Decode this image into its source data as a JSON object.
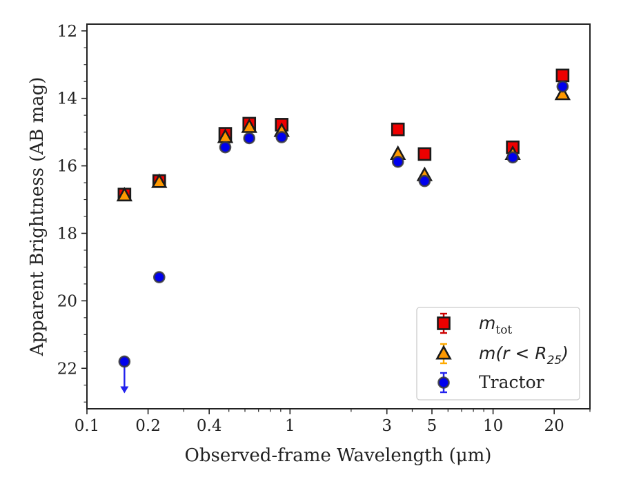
{
  "chart_data": {
    "type": "scatter",
    "xlabel": "Observed-frame Wavelength (μm)",
    "ylabel": "Apparent Brightness (AB mag)",
    "xscale": "log",
    "xlim": [
      0.1,
      30
    ],
    "ylim": [
      23.2,
      11.8
    ],
    "y_inverted": true,
    "x_ticks": [
      {
        "value": 0.1,
        "label": "0.1"
      },
      {
        "value": 0.2,
        "label": "0.2"
      },
      {
        "value": 0.4,
        "label": "0.4"
      },
      {
        "value": 1,
        "label": "1"
      },
      {
        "value": 3,
        "label": "3"
      },
      {
        "value": 5,
        "label": "5"
      },
      {
        "value": 10,
        "label": "10"
      },
      {
        "value": 20,
        "label": "20"
      }
    ],
    "y_ticks": [
      12,
      14,
      16,
      18,
      20,
      22
    ],
    "grid": false,
    "legend_position": "bottom-right",
    "series": [
      {
        "name": "m_tot",
        "marker": "square",
        "color": "#ee0000",
        "error_color": "#cc0000",
        "points": [
          {
            "x": 0.153,
            "y": 16.85
          },
          {
            "x": 0.227,
            "y": 16.45
          },
          {
            "x": 0.48,
            "y": 15.05
          },
          {
            "x": 0.63,
            "y": 14.75
          },
          {
            "x": 0.91,
            "y": 14.78
          },
          {
            "x": 3.4,
            "y": 14.92
          },
          {
            "x": 4.6,
            "y": 15.65
          },
          {
            "x": 12.5,
            "y": 15.45
          },
          {
            "x": 22.0,
            "y": 13.32
          }
        ]
      },
      {
        "name": "m(r < R_25)",
        "marker": "triangle",
        "color": "#ff9900",
        "error_color": "#ffaa00",
        "points": [
          {
            "x": 0.153,
            "y": 16.88
          },
          {
            "x": 0.227,
            "y": 16.48
          },
          {
            "x": 0.48,
            "y": 15.15
          },
          {
            "x": 0.63,
            "y": 14.85
          },
          {
            "x": 0.91,
            "y": 14.97
          },
          {
            "x": 3.4,
            "y": 15.65
          },
          {
            "x": 4.6,
            "y": 16.28
          },
          {
            "x": 12.5,
            "y": 15.65
          },
          {
            "x": 22.0,
            "y": 13.88
          }
        ]
      },
      {
        "name": "Tractor",
        "marker": "circle",
        "color": "#0000ee",
        "error_color": "#2222ee",
        "points": [
          {
            "x": 0.153,
            "y": 21.8,
            "upper_limit": true
          },
          {
            "x": 0.227,
            "y": 19.3
          },
          {
            "x": 0.48,
            "y": 15.45
          },
          {
            "x": 0.63,
            "y": 15.18
          },
          {
            "x": 0.91,
            "y": 15.15
          },
          {
            "x": 3.4,
            "y": 15.88
          },
          {
            "x": 4.6,
            "y": 16.45
          },
          {
            "x": 12.5,
            "y": 15.75
          },
          {
            "x": 22.0,
            "y": 13.65
          }
        ]
      }
    ]
  },
  "legend": {
    "entries": [
      {
        "series": "m_tot",
        "main": "m",
        "sub": "tot",
        "suffix": ""
      },
      {
        "series": "m(r < R_25)",
        "main": "m(r < R",
        "sub": "25",
        "suffix": ")"
      },
      {
        "series": "Tractor",
        "main": "Tractor",
        "sub": "",
        "suffix": ""
      }
    ]
  }
}
